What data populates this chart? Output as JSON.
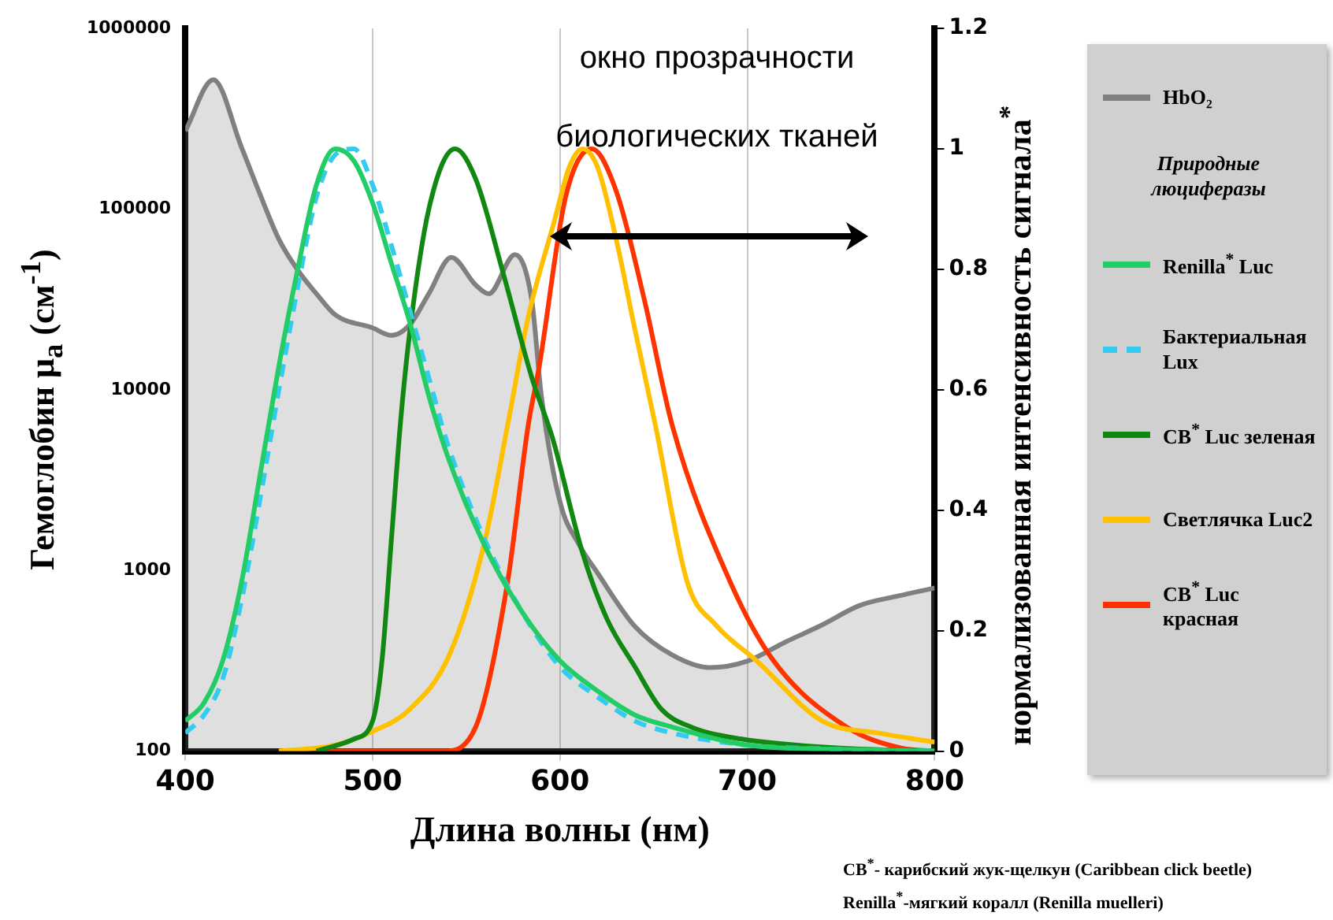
{
  "chart_data": {
    "type": "line",
    "xlabel": "Длина волны (нм)",
    "ylabel": "Гемоглобин μ$_{a}$ (см$^{-1}$)",
    "y2label": "нормализованная интенсивность сигнала$^{*}$",
    "legend_title": "Природные люциферазы",
    "annotations": [
      "окно прозрачности биологических тканей",
      "CB$^{*}$- карибский жук-щелкун (Caribbean click beetle)",
      "Renilla$^{*}$-мягкий коралл (Renilla muelleri)"
    ],
    "xlim": [
      400,
      800
    ],
    "xticks": [
      400,
      500,
      600,
      700,
      800
    ],
    "ylim": [
      100,
      1000000
    ],
    "yticks": [
      100,
      1000,
      10000,
      100000,
      1000000
    ],
    "y2lim": [
      0,
      1.2
    ],
    "y2ticks": [
      0,
      0.2,
      0.4,
      0.6,
      0.8,
      1,
      1.2
    ],
    "log": "y",
    "grid": "x",
    "legend": "right",
    "marker": "none",
    "line_style": "solid",
    "series": [
      {
        "name": "HbO₂",
        "type": "area",
        "color": "#808080",
        "x": [
          400,
          415,
          430,
          440,
          450,
          460,
          470,
          480,
          500,
          510,
          520,
          530,
          542,
          555,
          562,
          576,
          585,
          590,
          600,
          610,
          620,
          640,
          660,
          680,
          700,
          720,
          740,
          760,
          780,
          800
        ],
        "values": [
          270000,
          520000,
          220000,
          120000,
          68000,
          46000,
          34000,
          26000,
          22000,
          20000,
          23000,
          34000,
          54000,
          38000,
          34000,
          56000,
          31000,
          9400,
          2400,
          1400,
          970,
          490,
          340,
          290,
          315,
          400,
          500,
          640,
          720,
          800
        ]
      },
      {
        "name": "Renilla$^{*}$ Luc",
        "axis": "y2",
        "color": "#22cc66",
        "x": [
          400,
          410,
          420,
          430,
          440,
          450,
          460,
          470,
          480,
          490,
          500,
          510,
          520,
          530,
          540,
          560,
          580,
          600,
          620,
          640,
          660,
          700,
          750,
          800
        ],
        "values": [
          0.05,
          0.08,
          0.15,
          0.28,
          0.46,
          0.64,
          0.8,
          0.94,
          1,
          0.98,
          0.91,
          0.81,
          0.71,
          0.59,
          0.49,
          0.34,
          0.23,
          0.15,
          0.1,
          0.06,
          0.04,
          0.01,
          0.003,
          0
        ]
      },
      {
        "name": "Бактериальная Lux",
        "axis": "y2",
        "color": "#33ccee",
        "line_style": "dashed",
        "x": [
          400,
          410,
          420,
          430,
          440,
          450,
          460,
          470,
          480,
          490,
          500,
          510,
          520,
          530,
          540,
          560,
          580,
          600,
          620,
          640,
          660,
          700,
          750,
          800
        ],
        "values": [
          0.03,
          0.06,
          0.12,
          0.25,
          0.42,
          0.6,
          0.77,
          0.92,
          0.99,
          1,
          0.94,
          0.84,
          0.73,
          0.62,
          0.51,
          0.35,
          0.23,
          0.14,
          0.09,
          0.05,
          0.03,
          0.01,
          0.003,
          0
        ]
      },
      {
        "name": "CB$^{*}$ Luc зеленая",
        "axis": "y2",
        "color": "#118811",
        "x": [
          470,
          490,
          500,
          505,
          510,
          515,
          520,
          530,
          544,
          555,
          570,
          585,
          596,
          612,
          625,
          640,
          654,
          670,
          697,
          750,
          800
        ],
        "values": [
          0,
          0.02,
          0.05,
          0.15,
          0.35,
          0.55,
          0.7,
          0.9,
          1,
          0.95,
          0.79,
          0.62,
          0.52,
          0.33,
          0.22,
          0.14,
          0.07,
          0.04,
          0.02,
          0.005,
          0
        ]
      },
      {
        "name": "Светлячка Luc2",
        "axis": "y2",
        "color": "#ffc000",
        "x": [
          450,
          480,
          498,
          520,
          541,
          560,
          572,
          583,
          597,
          605,
          612,
          620,
          630,
          640,
          651,
          668,
          683,
          705,
          740,
          770,
          800
        ],
        "values": [
          0,
          0.01,
          0.03,
          0.07,
          0.16,
          0.35,
          0.54,
          0.72,
          0.88,
          0.97,
          1,
          0.97,
          0.85,
          0.7,
          0.54,
          0.28,
          0.21,
          0.15,
          0.05,
          0.03,
          0.015
        ]
      },
      {
        "name": "CB$^{*}$ Luc красная",
        "axis": "y2",
        "color": "#ff3300",
        "x": [
          450,
          538,
          555,
          572,
          583,
          589,
          603,
          617,
          630,
          645,
          660,
          691,
          714,
          753,
          782,
          800
        ],
        "values": [
          0,
          0,
          0.04,
          0.28,
          0.54,
          0.64,
          0.92,
          1,
          0.93,
          0.75,
          0.54,
          0.28,
          0.15,
          0.04,
          0.005,
          0
        ]
      }
    ]
  }
}
